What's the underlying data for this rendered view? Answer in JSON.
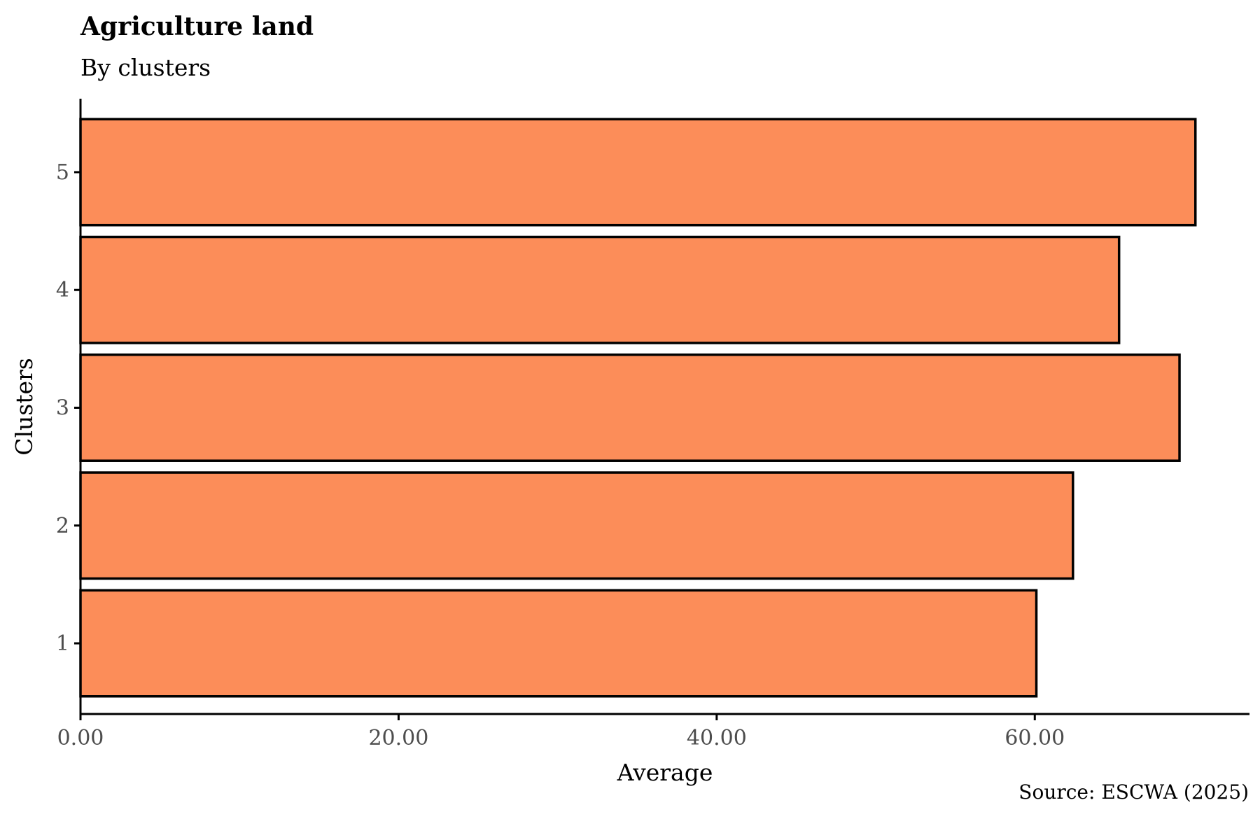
{
  "chart_data": {
    "type": "bar",
    "orientation": "horizontal",
    "title": "Agriculture land",
    "subtitle": "By clusters",
    "xlabel": "Average",
    "ylabel": "Clusters",
    "caption": "Source: ESCWA (2025)",
    "categories": [
      "1",
      "2",
      "3",
      "4",
      "5"
    ],
    "values": [
      60.1,
      62.4,
      69.1,
      65.3,
      70.1
    ],
    "xlim": [
      0,
      73.5
    ],
    "x_ticks": [
      0,
      20,
      40,
      60
    ],
    "x_tick_labels": [
      "0.00",
      "20.00",
      "40.00",
      "60.00"
    ],
    "grid": false,
    "legend": "none",
    "colors": {
      "bar_fill": "#fc8d59",
      "bar_stroke": "#000000",
      "axis": "#000000",
      "tick_text": "#4d4d4d"
    }
  }
}
